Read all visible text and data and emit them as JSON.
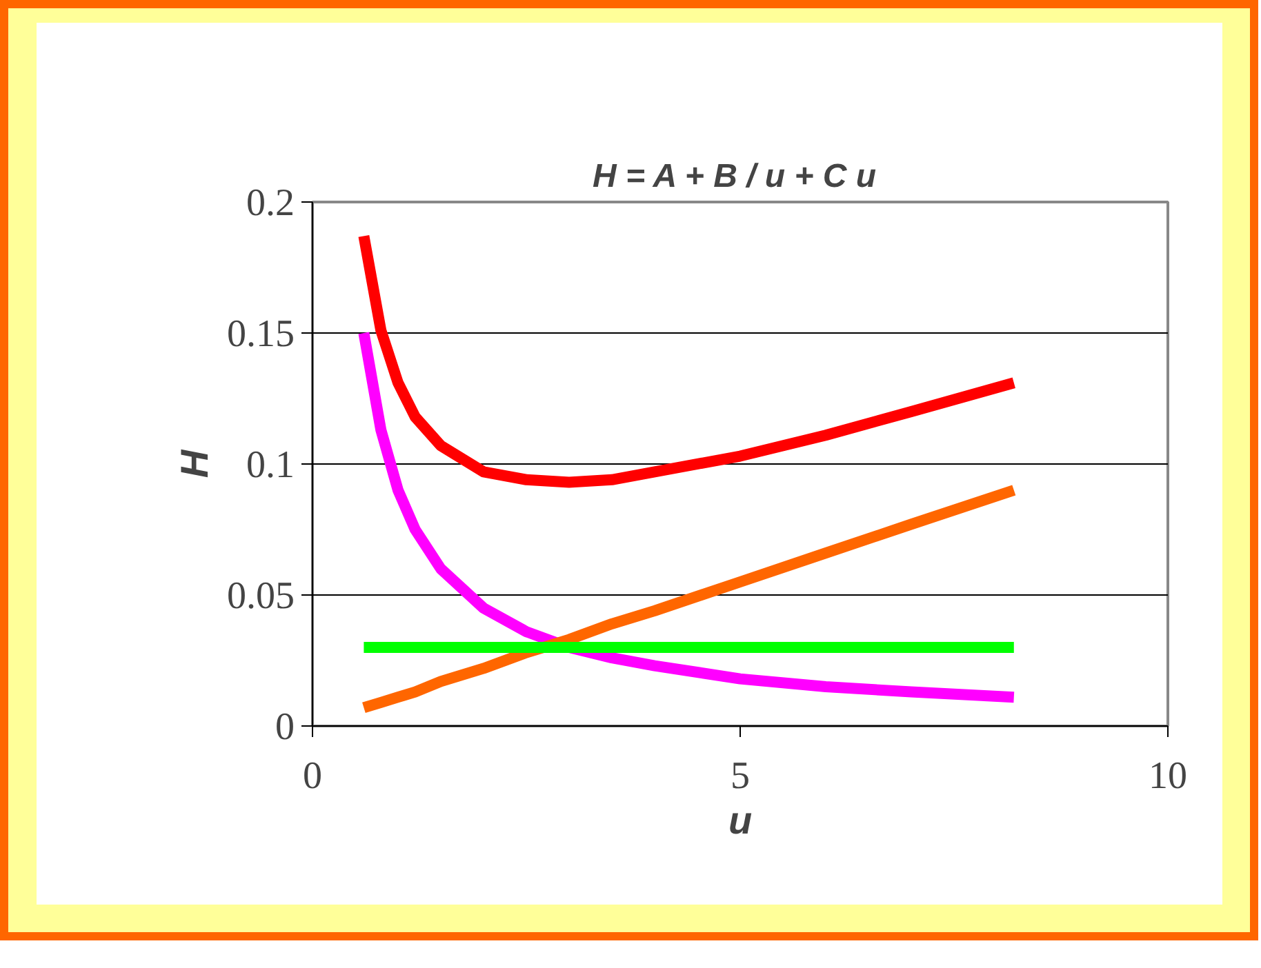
{
  "chart_data": {
    "type": "line",
    "title": "H = A + B / u + C  u",
    "xlabel": "u",
    "ylabel": "H",
    "x": [
      0.6,
      0.8,
      1.0,
      1.2,
      1.5,
      2.0,
      2.5,
      3.0,
      3.5,
      4.0,
      5.0,
      6.0,
      7.0,
      8.2
    ],
    "series": [
      {
        "color": "#ff0000",
        "values": [
          0.187,
          0.151,
          0.131,
          0.118,
          0.107,
          0.097,
          0.094,
          0.093,
          0.094,
          0.097,
          0.103,
          0.111,
          0.12,
          0.131
        ]
      },
      {
        "color": "#ff00ff",
        "values": [
          0.15,
          0.113,
          0.09,
          0.075,
          0.06,
          0.045,
          0.036,
          0.03,
          0.026,
          0.023,
          0.018,
          0.015,
          0.013,
          0.011
        ]
      },
      {
        "color": "#ff6600",
        "values": [
          0.007,
          0.009,
          0.011,
          0.013,
          0.017,
          0.022,
          0.028,
          0.033,
          0.039,
          0.044,
          0.055,
          0.066,
          0.077,
          0.09
        ]
      },
      {
        "color": "#00ff00",
        "x": [
          0.6,
          8.2
        ],
        "values": [
          0.03,
          0.03
        ]
      }
    ],
    "xlim": [
      0,
      10
    ],
    "xticks": [
      0,
      5,
      10
    ],
    "ylim": [
      0,
      0.2
    ],
    "yticks": [
      0,
      0.05,
      0.1,
      0.15,
      0.2
    ],
    "grid": "y",
    "marker": "none",
    "line_style": "solid"
  }
}
